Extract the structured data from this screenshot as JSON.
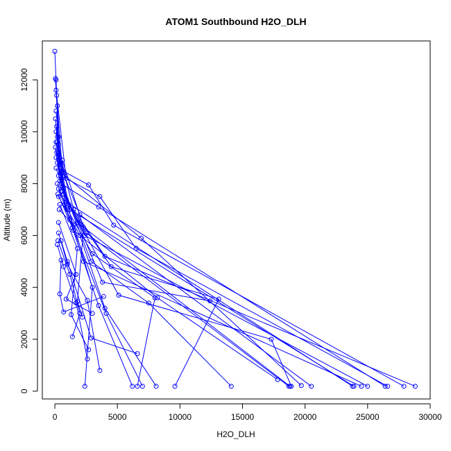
{
  "chart_data": {
    "type": "line",
    "title": "ATOM1 Southbound H2O_DLH",
    "xlabel": "H2O_DLH",
    "ylabel": "Altitude (m)",
    "xlim": [
      -1000,
      30000
    ],
    "ylim": [
      -300,
      13500
    ],
    "x_ticks": [
      0,
      5000,
      10000,
      15000,
      20000,
      25000,
      30000
    ],
    "y_ticks": [
      0,
      2000,
      4000,
      6000,
      8000,
      10000,
      12000
    ],
    "grid": false,
    "legend": "none",
    "series_color": "#0000ff",
    "point_style": "open-circle",
    "profiles": [
      [
        [
          0,
          13100
        ],
        [
          100,
          12000
        ],
        [
          300,
          9500
        ],
        [
          800,
          7200
        ],
        [
          2300,
          5000
        ],
        [
          24500,
          190
        ]
      ],
      [
        [
          50,
          12050
        ],
        [
          400,
          9000
        ],
        [
          1500,
          7000
        ],
        [
          4000,
          5200
        ],
        [
          28800,
          190
        ]
      ],
      [
        [
          100,
          11600
        ],
        [
          600,
          8500
        ],
        [
          2700,
          7950
        ],
        [
          4700,
          6400
        ],
        [
          27900,
          190
        ]
      ],
      [
        [
          150,
          11400
        ],
        [
          900,
          8200
        ],
        [
          3600,
          7500
        ],
        [
          6500,
          5500
        ],
        [
          26600,
          190
        ]
      ],
      [
        [
          200,
          11000
        ],
        [
          200,
          9600
        ],
        [
          500,
          8000
        ],
        [
          3500,
          7100
        ],
        [
          26400,
          190
        ]
      ],
      [
        [
          100,
          10800
        ],
        [
          300,
          9800
        ],
        [
          700,
          7600
        ],
        [
          2400,
          6000
        ],
        [
          25000,
          190
        ]
      ],
      [
        [
          50,
          10500
        ],
        [
          300,
          9200
        ],
        [
          900,
          7300
        ],
        [
          23800,
          190
        ]
      ],
      [
        [
          150,
          10200
        ],
        [
          400,
          8800
        ],
        [
          1200,
          7000
        ],
        [
          23900,
          190
        ]
      ],
      [
        [
          100,
          10000
        ],
        [
          500,
          8600
        ],
        [
          2000,
          6800
        ],
        [
          20500,
          190
        ]
      ],
      [
        [
          200,
          9800
        ],
        [
          800,
          8300
        ],
        [
          6900,
          5900
        ],
        [
          19700,
          220
        ]
      ],
      [
        [
          100,
          9600
        ],
        [
          600,
          7700
        ],
        [
          2500,
          6100
        ],
        [
          18700,
          190
        ]
      ],
      [
        [
          50,
          9400
        ],
        [
          400,
          8100
        ],
        [
          1800,
          6500
        ],
        [
          18800,
          190
        ]
      ],
      [
        [
          150,
          9200
        ],
        [
          700,
          7800
        ],
        [
          3800,
          4200
        ],
        [
          12400,
          3480
        ]
      ],
      [
        [
          100,
          9000
        ],
        [
          500,
          8400
        ],
        [
          1500,
          6200
        ],
        [
          8200,
          3600
        ],
        [
          17800,
          450
        ]
      ],
      [
        [
          200,
          8800
        ],
        [
          900,
          7400
        ],
        [
          5100,
          3700
        ],
        [
          17300,
          2000
        ],
        [
          18900,
          190
        ]
      ],
      [
        [
          100,
          8600
        ],
        [
          600,
          7900
        ],
        [
          2900,
          5000
        ],
        [
          7500,
          3400
        ],
        [
          14100,
          190
        ]
      ],
      [
        [
          300,
          8300
        ],
        [
          1100,
          7200
        ],
        [
          4500,
          4800
        ],
        [
          13100,
          3550
        ],
        [
          9600,
          190
        ]
      ],
      [
        [
          200,
          8000
        ],
        [
          1000,
          7000
        ],
        [
          3000,
          5300
        ],
        [
          8000,
          3600
        ],
        [
          6600,
          190
        ]
      ],
      [
        [
          300,
          7800
        ],
        [
          1200,
          6600
        ],
        [
          4100,
          3000
        ],
        [
          7000,
          190
        ]
      ],
      [
        [
          250,
          7600
        ],
        [
          1400,
          6300
        ],
        [
          3500,
          3300
        ],
        [
          6200,
          190
        ]
      ],
      [
        [
          300,
          7500
        ],
        [
          2000,
          6000
        ],
        [
          4000,
          3200
        ],
        [
          8100,
          190
        ]
      ],
      [
        [
          350,
          7000
        ],
        [
          1500,
          6400
        ],
        [
          3000,
          4000
        ],
        [
          2400,
          190
        ]
      ],
      [
        [
          300,
          6100
        ],
        [
          1000,
          4900
        ],
        [
          2600,
          3500
        ],
        [
          3600,
          800
        ]
      ],
      [
        [
          250,
          5800
        ],
        [
          1200,
          4500
        ],
        [
          2000,
          3000
        ],
        [
          1400,
          2100
        ]
      ],
      [
        [
          200,
          5650
        ],
        [
          700,
          4800
        ],
        [
          1700,
          3400
        ],
        [
          2600,
          1240
        ]
      ],
      [
        [
          500,
          5800
        ],
        [
          1000,
          5000
        ],
        [
          2900,
          2050
        ],
        [
          6600,
          1450
        ]
      ],
      [
        [
          500,
          5050
        ],
        [
          400,
          3750
        ],
        [
          700,
          3050
        ],
        [
          3900,
          3650
        ]
      ],
      [
        [
          300,
          6500
        ],
        [
          1700,
          4500
        ],
        [
          900,
          3550
        ],
        [
          3000,
          3000
        ]
      ],
      [
        [
          400,
          7200
        ],
        [
          1800,
          5500
        ],
        [
          1300,
          2950
        ],
        [
          2700,
          1600
        ]
      ],
      [
        [
          600,
          8900
        ],
        [
          2300,
          6300
        ],
        [
          1800,
          3450
        ],
        [
          2200,
          2850
        ]
      ]
    ]
  }
}
